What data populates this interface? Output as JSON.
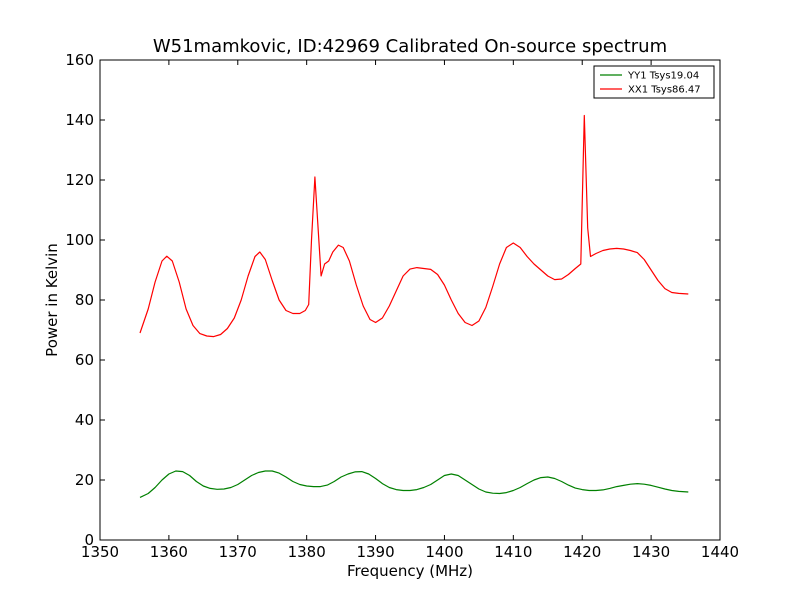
{
  "chart_data": {
    "type": "line",
    "title": "W51mamkovic, ID:42969 Calibrated On-source spectrum",
    "xlabel": "Frequency (MHz)",
    "ylabel": "Power in Kelvin",
    "xlim": [
      1350,
      1440
    ],
    "ylim": [
      0,
      160
    ],
    "xticks": [
      1350,
      1360,
      1370,
      1380,
      1390,
      1400,
      1410,
      1420,
      1430,
      1440
    ],
    "yticks": [
      0,
      20,
      40,
      60,
      80,
      100,
      120,
      140,
      160
    ],
    "grid": false,
    "legend_position": "top-right",
    "series": [
      {
        "name": "YY1 Tsys19.04",
        "color": "#008000",
        "points": [
          [
            1355.8,
            14.2
          ],
          [
            1357.0,
            15.5
          ],
          [
            1358.0,
            17.5
          ],
          [
            1359.0,
            20.0
          ],
          [
            1360.0,
            22.0
          ],
          [
            1361.0,
            23.0
          ],
          [
            1362.0,
            22.8
          ],
          [
            1363.0,
            21.5
          ],
          [
            1364.0,
            19.5
          ],
          [
            1365.0,
            18.0
          ],
          [
            1366.0,
            17.2
          ],
          [
            1367.0,
            16.9
          ],
          [
            1368.0,
            17.0
          ],
          [
            1369.0,
            17.5
          ],
          [
            1370.0,
            18.5
          ],
          [
            1371.0,
            20.0
          ],
          [
            1372.0,
            21.5
          ],
          [
            1373.0,
            22.5
          ],
          [
            1374.0,
            23.0
          ],
          [
            1375.0,
            23.0
          ],
          [
            1376.0,
            22.3
          ],
          [
            1377.0,
            21.0
          ],
          [
            1378.0,
            19.5
          ],
          [
            1379.0,
            18.5
          ],
          [
            1380.0,
            18.0
          ],
          [
            1381.0,
            17.8
          ],
          [
            1382.0,
            17.8
          ],
          [
            1383.0,
            18.3
          ],
          [
            1384.0,
            19.5
          ],
          [
            1385.0,
            21.0
          ],
          [
            1386.0,
            22.0
          ],
          [
            1387.0,
            22.7
          ],
          [
            1388.0,
            22.8
          ],
          [
            1389.0,
            22.0
          ],
          [
            1390.0,
            20.5
          ],
          [
            1391.0,
            18.8
          ],
          [
            1392.0,
            17.5
          ],
          [
            1393.0,
            16.8
          ],
          [
            1394.0,
            16.5
          ],
          [
            1395.0,
            16.5
          ],
          [
            1396.0,
            16.8
          ],
          [
            1397.0,
            17.5
          ],
          [
            1398.0,
            18.5
          ],
          [
            1399.0,
            20.0
          ],
          [
            1400.0,
            21.5
          ],
          [
            1401.0,
            22.0
          ],
          [
            1402.0,
            21.5
          ],
          [
            1403.0,
            20.0
          ],
          [
            1404.0,
            18.5
          ],
          [
            1405.0,
            17.0
          ],
          [
            1406.0,
            16.0
          ],
          [
            1407.0,
            15.6
          ],
          [
            1408.0,
            15.5
          ],
          [
            1409.0,
            15.8
          ],
          [
            1410.0,
            16.5
          ],
          [
            1411.0,
            17.5
          ],
          [
            1412.0,
            18.8
          ],
          [
            1413.0,
            20.0
          ],
          [
            1414.0,
            20.8
          ],
          [
            1415.0,
            21.0
          ],
          [
            1416.0,
            20.5
          ],
          [
            1417.0,
            19.5
          ],
          [
            1418.0,
            18.3
          ],
          [
            1419.0,
            17.3
          ],
          [
            1420.0,
            16.8
          ],
          [
            1421.0,
            16.5
          ],
          [
            1422.0,
            16.5
          ],
          [
            1423.0,
            16.7
          ],
          [
            1424.0,
            17.2
          ],
          [
            1425.0,
            17.8
          ],
          [
            1426.0,
            18.2
          ],
          [
            1427.0,
            18.6
          ],
          [
            1428.0,
            18.8
          ],
          [
            1429.0,
            18.6
          ],
          [
            1430.0,
            18.2
          ],
          [
            1431.0,
            17.6
          ],
          [
            1432.0,
            17.0
          ],
          [
            1433.0,
            16.5
          ],
          [
            1434.0,
            16.2
          ],
          [
            1435.4,
            16.0
          ]
        ]
      },
      {
        "name": "XX1 Tsys86.47",
        "color": "#ff0000",
        "points": [
          [
            1355.8,
            69.0
          ],
          [
            1357.0,
            77.0
          ],
          [
            1358.0,
            86.0
          ],
          [
            1359.0,
            93.0
          ],
          [
            1359.7,
            94.6
          ],
          [
            1360.5,
            93.0
          ],
          [
            1361.5,
            86.0
          ],
          [
            1362.5,
            77.0
          ],
          [
            1363.5,
            71.5
          ],
          [
            1364.5,
            68.8
          ],
          [
            1365.5,
            68.0
          ],
          [
            1366.5,
            67.8
          ],
          [
            1367.5,
            68.5
          ],
          [
            1368.5,
            70.5
          ],
          [
            1369.5,
            74.0
          ],
          [
            1370.5,
            80.0
          ],
          [
            1371.5,
            88.0
          ],
          [
            1372.5,
            94.5
          ],
          [
            1373.2,
            96.0
          ],
          [
            1374.0,
            93.5
          ],
          [
            1375.0,
            86.5
          ],
          [
            1376.0,
            80.0
          ],
          [
            1377.0,
            76.5
          ],
          [
            1378.0,
            75.5
          ],
          [
            1379.0,
            75.5
          ],
          [
            1379.8,
            76.5
          ],
          [
            1380.3,
            78.5
          ],
          [
            1380.7,
            100.0
          ],
          [
            1381.2,
            121.0
          ],
          [
            1381.6,
            106.0
          ],
          [
            1382.1,
            88.0
          ],
          [
            1382.6,
            92.0
          ],
          [
            1383.2,
            93.0
          ],
          [
            1383.8,
            96.0
          ],
          [
            1384.6,
            98.3
          ],
          [
            1385.3,
            97.5
          ],
          [
            1386.2,
            93.0
          ],
          [
            1387.2,
            85.0
          ],
          [
            1388.2,
            78.0
          ],
          [
            1389.2,
            73.5
          ],
          [
            1390.0,
            72.5
          ],
          [
            1391.0,
            74.0
          ],
          [
            1392.0,
            78.0
          ],
          [
            1393.0,
            83.0
          ],
          [
            1394.0,
            88.0
          ],
          [
            1395.0,
            90.3
          ],
          [
            1396.0,
            90.8
          ],
          [
            1397.0,
            90.5
          ],
          [
            1398.0,
            90.2
          ],
          [
            1399.0,
            88.5
          ],
          [
            1400.0,
            85.0
          ],
          [
            1401.0,
            80.0
          ],
          [
            1402.0,
            75.5
          ],
          [
            1403.0,
            72.5
          ],
          [
            1404.0,
            71.5
          ],
          [
            1405.0,
            73.0
          ],
          [
            1406.0,
            77.5
          ],
          [
            1407.0,
            84.5
          ],
          [
            1408.0,
            92.0
          ],
          [
            1409.0,
            97.5
          ],
          [
            1410.0,
            99.0
          ],
          [
            1411.0,
            97.5
          ],
          [
            1412.0,
            94.5
          ],
          [
            1413.0,
            92.0
          ],
          [
            1414.0,
            90.0
          ],
          [
            1415.0,
            88.0
          ],
          [
            1416.0,
            86.8
          ],
          [
            1417.0,
            87.0
          ],
          [
            1418.0,
            88.5
          ],
          [
            1419.0,
            90.5
          ],
          [
            1419.8,
            92.0
          ],
          [
            1420.3,
            141.5
          ],
          [
            1420.8,
            104.0
          ],
          [
            1421.2,
            94.5
          ],
          [
            1422.0,
            95.5
          ],
          [
            1423.0,
            96.5
          ],
          [
            1424.0,
            97.0
          ],
          [
            1425.0,
            97.2
          ],
          [
            1426.0,
            97.0
          ],
          [
            1427.0,
            96.5
          ],
          [
            1428.0,
            95.8
          ],
          [
            1429.0,
            93.5
          ],
          [
            1430.0,
            90.0
          ],
          [
            1431.0,
            86.5
          ],
          [
            1432.0,
            83.8
          ],
          [
            1433.0,
            82.5
          ],
          [
            1434.0,
            82.2
          ],
          [
            1435.4,
            82.0
          ]
        ]
      }
    ]
  }
}
